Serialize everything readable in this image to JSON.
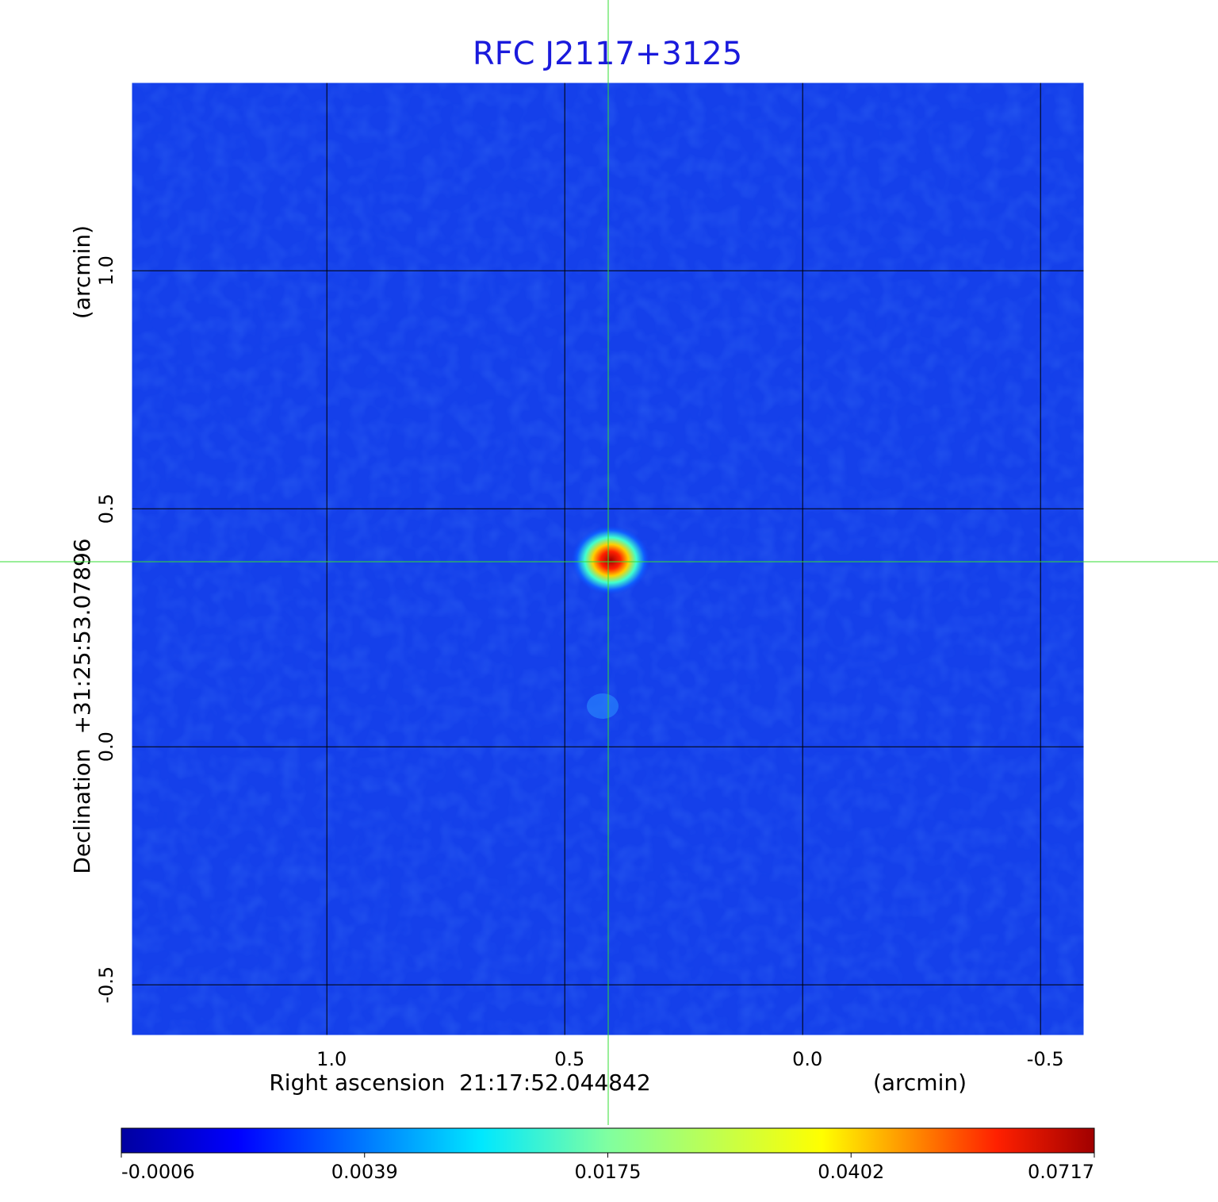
{
  "chart_data": {
    "type": "image",
    "title": "RFC J2117+3125",
    "x_label": "Right ascension  21:17:52.044842",
    "x_unit": "(arcmin)",
    "y_label": "Declination  +31:25:53.07896",
    "y_unit": "(arcmin)",
    "xlim": [
      1.412,
      -0.593
    ],
    "ylim": [
      -0.608,
      1.397
    ],
    "xticks": [
      {
        "value": 1,
        "label": "1.0"
      },
      0.5,
      {
        "value": 0,
        "label": "0.0"
      },
      -0.5
    ],
    "yticks": [
      {
        "value": 1,
        "label": "1.0"
      },
      0.5,
      {
        "value": 0,
        "label": "0.0"
      },
      -0.5
    ],
    "grid": true,
    "colorbar_ticks": [
      -0.0006,
      0.0039,
      0.0175,
      0.0402,
      0.0717
    ]
  }
}
